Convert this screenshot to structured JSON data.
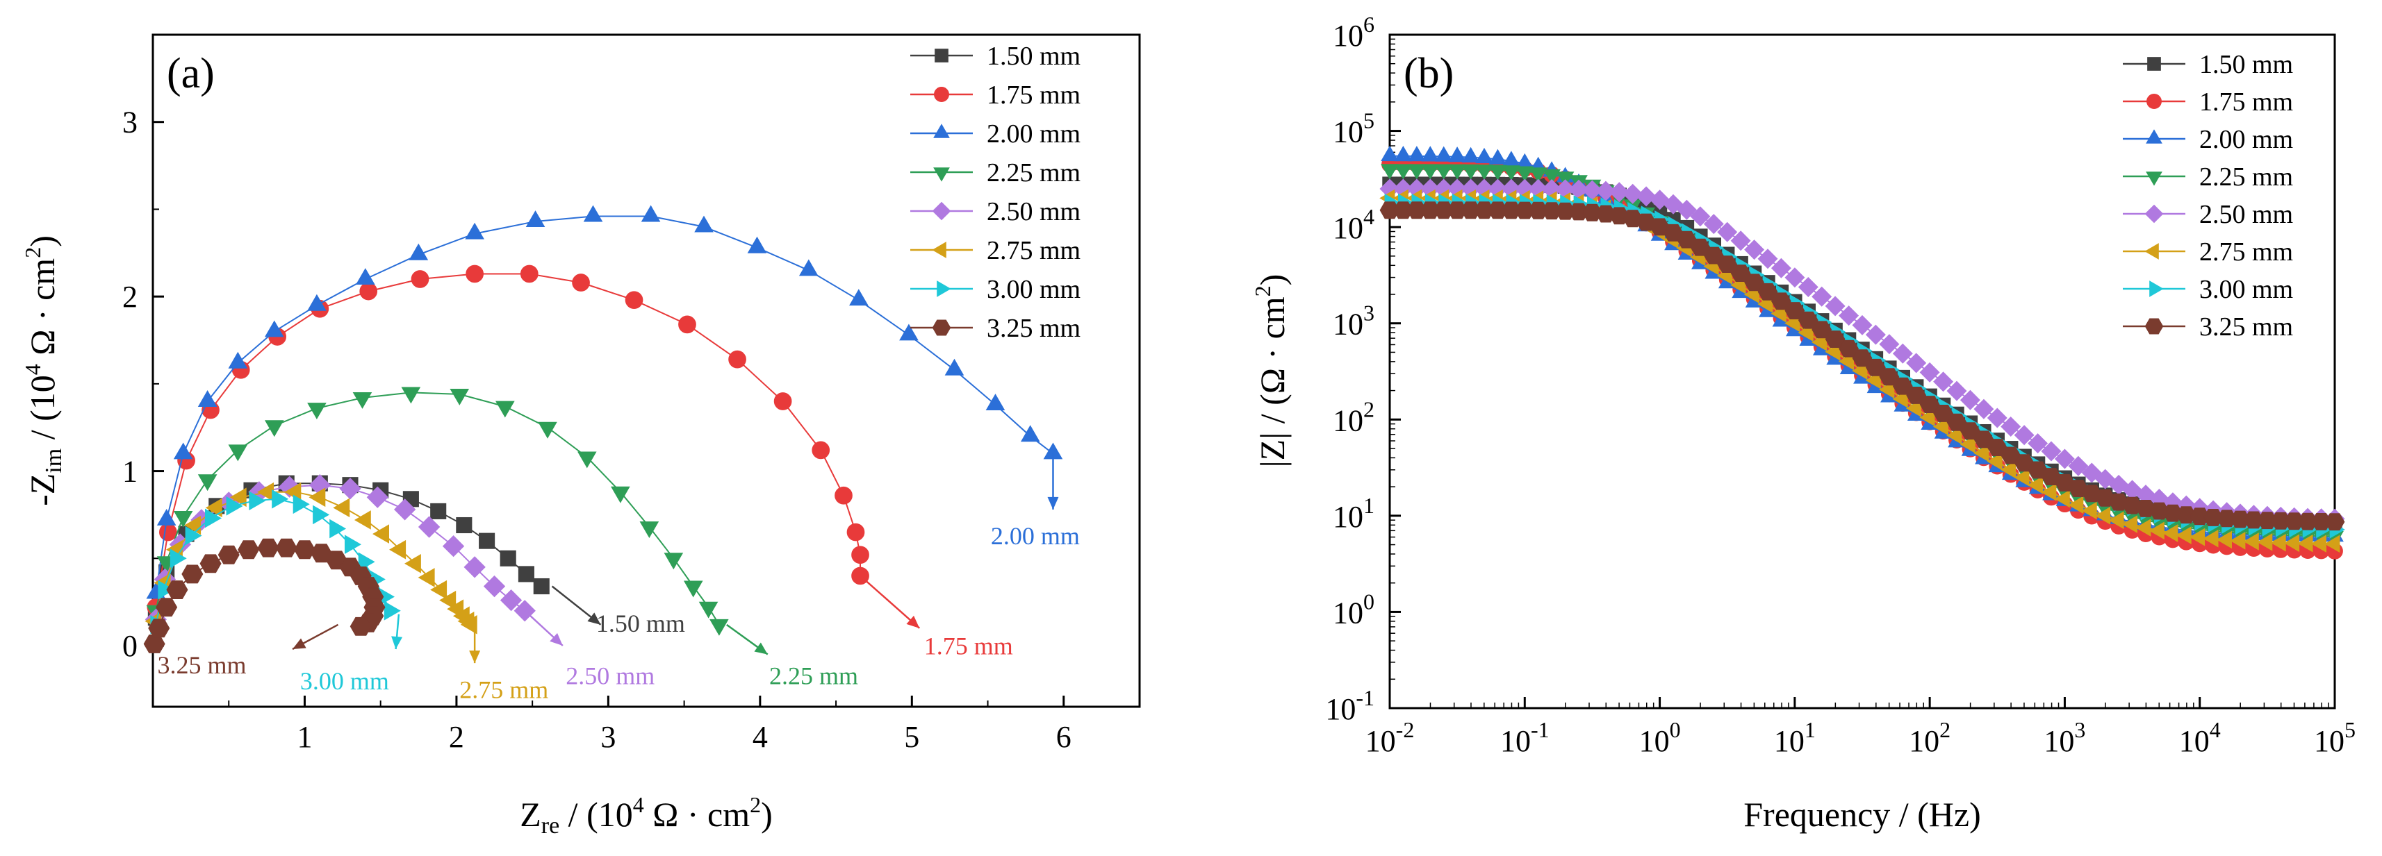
{
  "chart_data": [
    {
      "type": "scatter",
      "panel_label": "(a)",
      "title": "",
      "xlabel": {
        "base": "Z",
        "sub": "re",
        "unit_pre": " / (10",
        "sup": "4",
        "unit_post": " Ω · cm",
        "sup2": "2",
        "close": ")"
      },
      "ylabel": {
        "base": "-Z",
        "sub": "im",
        "unit_pre": " / (10",
        "sup": "4",
        "unit_post": " Ω · cm",
        "sup2": "2",
        "close": ")"
      },
      "xlim": [
        0,
        6.5
      ],
      "ylim": [
        -0.35,
        3.5
      ],
      "xticks": [
        1,
        2,
        3,
        4,
        5,
        6
      ],
      "xtick_labels": [
        "1",
        "2",
        "3",
        "4",
        "5",
        "6"
      ],
      "yticks": [
        0,
        1,
        2,
        3
      ],
      "ytick_labels": [
        "0",
        "1",
        "2",
        "3"
      ],
      "legend_position": "top-right",
      "series": [
        {
          "name": "1.50 mm",
          "color": "#404040",
          "marker": "square",
          "x": [
            0.02,
            0.09,
            0.22,
            0.42,
            0.65,
            0.88,
            1.1,
            1.3,
            1.5,
            1.7,
            1.88,
            2.05,
            2.2,
            2.34,
            2.46,
            2.56
          ],
          "y": [
            0.16,
            0.42,
            0.64,
            0.8,
            0.89,
            0.93,
            0.93,
            0.92,
            0.89,
            0.84,
            0.77,
            0.69,
            0.6,
            0.5,
            0.41,
            0.34
          ],
          "annotation": {
            "text": "1.50 mm",
            "arrow_from": [
              2.63,
              0.34
            ],
            "arrow_to": [
              2.95,
              0.12
            ],
            "text_at": [
              2.92,
              0.08
            ]
          }
        },
        {
          "name": "1.75 mm",
          "color": "#e83a3a",
          "marker": "circle",
          "x": [
            0.02,
            0.1,
            0.22,
            0.38,
            0.58,
            0.82,
            1.1,
            1.42,
            1.76,
            2.12,
            2.48,
            2.82,
            3.17,
            3.52,
            3.85,
            4.15,
            4.4,
            4.55,
            4.63,
            4.66,
            4.66
          ],
          "y": [
            0.22,
            0.65,
            1.06,
            1.35,
            1.58,
            1.77,
            1.93,
            2.03,
            2.1,
            2.13,
            2.13,
            2.08,
            1.98,
            1.84,
            1.64,
            1.4,
            1.12,
            0.86,
            0.65,
            0.52,
            0.4
          ],
          "annotation": {
            "text": "1.75 mm",
            "arrow_from": [
              4.66,
              0.4
            ],
            "arrow_to": [
              5.05,
              0.1
            ],
            "text_at": [
              5.08,
              -0.05
            ]
          }
        },
        {
          "name": "2.00 mm",
          "color": "#2b6fd8",
          "marker": "triangle-up",
          "x": [
            0.02,
            0.09,
            0.2,
            0.36,
            0.56,
            0.8,
            1.08,
            1.4,
            1.75,
            2.12,
            2.52,
            2.9,
            3.28,
            3.63,
            3.98,
            4.32,
            4.65,
            4.98,
            5.28,
            5.55,
            5.78,
            5.93
          ],
          "y": [
            0.3,
            0.72,
            1.1,
            1.4,
            1.62,
            1.8,
            1.95,
            2.1,
            2.24,
            2.36,
            2.43,
            2.46,
            2.46,
            2.4,
            2.28,
            2.15,
            1.98,
            1.78,
            1.58,
            1.38,
            1.2,
            1.1
          ],
          "annotation": {
            "text": "2.00 mm",
            "arrow_from": [
              5.93,
              1.1
            ],
            "arrow_to": [
              5.93,
              0.78
            ],
            "text_at": [
              5.52,
              0.58
            ]
          }
        },
        {
          "name": "2.25 mm",
          "color": "#2e9e56",
          "marker": "triangle-down",
          "x": [
            0.02,
            0.09,
            0.2,
            0.36,
            0.56,
            0.8,
            1.08,
            1.38,
            1.7,
            2.02,
            2.32,
            2.6,
            2.86,
            3.08,
            3.27,
            3.43,
            3.56,
            3.66,
            3.73
          ],
          "y": [
            0.2,
            0.48,
            0.74,
            0.95,
            1.12,
            1.26,
            1.36,
            1.42,
            1.45,
            1.44,
            1.37,
            1.25,
            1.08,
            0.88,
            0.68,
            0.5,
            0.34,
            0.22,
            0.12
          ],
          "annotation": {
            "text": "2.25 mm",
            "arrow_from": [
              3.78,
              0.12
            ],
            "arrow_to": [
              4.05,
              -0.05
            ],
            "text_at": [
              4.06,
              -0.22
            ]
          }
        },
        {
          "name": "2.50 mm",
          "color": "#b079e0",
          "marker": "diamond",
          "x": [
            0.02,
            0.08,
            0.18,
            0.32,
            0.5,
            0.7,
            0.9,
            1.1,
            1.3,
            1.48,
            1.66,
            1.82,
            1.98,
            2.12,
            2.25,
            2.36,
            2.45
          ],
          "y": [
            0.15,
            0.38,
            0.58,
            0.72,
            0.82,
            0.88,
            0.91,
            0.92,
            0.9,
            0.85,
            0.78,
            0.68,
            0.57,
            0.45,
            0.34,
            0.26,
            0.2
          ],
          "annotation": {
            "text": "2.50 mm",
            "arrow_from": [
              2.45,
              0.2
            ],
            "arrow_to": [
              2.7,
              0.0
            ],
            "text_at": [
              2.72,
              -0.22
            ]
          }
        },
        {
          "name": "2.75 mm",
          "color": "#d4a017",
          "marker": "triangle-left",
          "x": [
            0.02,
            0.08,
            0.16,
            0.28,
            0.42,
            0.58,
            0.76,
            0.94,
            1.1,
            1.26,
            1.4,
            1.52,
            1.63,
            1.73,
            1.82,
            1.9,
            1.96,
            2.01,
            2.05,
            2.08,
            2.1
          ],
          "y": [
            0.14,
            0.36,
            0.55,
            0.69,
            0.79,
            0.85,
            0.88,
            0.88,
            0.85,
            0.79,
            0.72,
            0.64,
            0.55,
            0.47,
            0.39,
            0.32,
            0.26,
            0.21,
            0.17,
            0.14,
            0.12
          ],
          "annotation": {
            "text": "2.75 mm",
            "arrow_from": [
              2.12,
              0.1
            ],
            "arrow_to": [
              2.12,
              -0.1
            ],
            "text_at": [
              2.02,
              -0.3
            ]
          }
        },
        {
          "name": "3.00 mm",
          "color": "#1fc8d8",
          "marker": "triangle-right",
          "x": [
            0.02,
            0.07,
            0.15,
            0.25,
            0.38,
            0.52,
            0.67,
            0.82,
            0.96,
            1.09,
            1.2,
            1.3,
            1.39,
            1.46,
            1.52,
            1.56
          ],
          "y": [
            0.12,
            0.32,
            0.5,
            0.63,
            0.73,
            0.8,
            0.83,
            0.84,
            0.81,
            0.75,
            0.67,
            0.58,
            0.48,
            0.38,
            0.28,
            0.2
          ],
          "annotation": {
            "text": "3.00 mm",
            "arrow_from": [
              1.62,
              0.18
            ],
            "arrow_to": [
              1.6,
              -0.02
            ],
            "text_at": [
              0.97,
              -0.25
            ]
          }
        },
        {
          "name": "3.25 mm",
          "color": "#7a3b2e",
          "marker": "hexagon",
          "x": [
            0.01,
            0.04,
            0.09,
            0.16,
            0.26,
            0.38,
            0.5,
            0.63,
            0.76,
            0.88,
            1.0,
            1.11,
            1.21,
            1.3,
            1.37,
            1.42,
            1.45,
            1.46,
            1.45,
            1.42,
            1.37
          ],
          "y": [
            0.01,
            0.1,
            0.22,
            0.32,
            0.41,
            0.47,
            0.52,
            0.55,
            0.56,
            0.56,
            0.55,
            0.53,
            0.49,
            0.45,
            0.4,
            0.34,
            0.28,
            0.22,
            0.17,
            0.13,
            0.11
          ],
          "annotation": {
            "text": "3.25 mm",
            "arrow_from": [
              1.22,
              0.12
            ],
            "arrow_to": [
              0.92,
              -0.02
            ],
            "text_at": [
              0.03,
              -0.16
            ]
          }
        }
      ]
    },
    {
      "type": "scatter",
      "panel_label": "(b)",
      "title": "",
      "xlabel": {
        "text": "Frequency / (Hz)"
      },
      "ylabel": {
        "pre": "|Z| / (Ω · cm",
        "sup": "2",
        "post": ")"
      },
      "xscale": "log",
      "yscale": "log",
      "xlim_exp": [
        -2,
        5
      ],
      "ylim_exp": [
        -1,
        6
      ],
      "xtick_exps": [
        "-2",
        "-1",
        "0",
        "1",
        "2",
        "3",
        "4",
        "5"
      ],
      "ytick_exps": [
        "-1",
        "0",
        "1",
        "2",
        "3",
        "4",
        "5",
        "6"
      ],
      "tick_base": "10",
      "legend_position": "top-right",
      "frequency_points_per_decade": 10,
      "model": "|Z| = R_s + R_p / sqrt(1 + (f / f_c)^2)",
      "series": [
        {
          "name": "1.50 mm",
          "color": "#404040",
          "marker": "square",
          "R_s": 8,
          "R_p": 28000,
          "f_c": 0.6
        },
        {
          "name": "1.75 mm",
          "color": "#e83a3a",
          "marker": "circle",
          "R_s": 4.2,
          "R_p": 45000,
          "f_c": 0.2
        },
        {
          "name": "2.00 mm",
          "color": "#2b6fd8",
          "marker": "triangle-up",
          "R_s": 6,
          "R_p": 55000,
          "f_c": 0.15
        },
        {
          "name": "2.25 mm",
          "color": "#2e9e56",
          "marker": "triangle-down",
          "R_s": 6,
          "R_p": 40000,
          "f_c": 0.3
        },
        {
          "name": "2.50 mm",
          "color": "#b079e0",
          "marker": "diamond",
          "R_s": 9,
          "R_p": 25000,
          "f_c": 1.2
        },
        {
          "name": "2.75 mm",
          "color": "#d4a017",
          "marker": "triangle-left",
          "R_s": 5,
          "R_p": 20000,
          "f_c": 0.5
        },
        {
          "name": "3.00 mm",
          "color": "#1fc8d8",
          "marker": "triangle-right",
          "R_s": 7,
          "R_p": 18000,
          "f_c": 0.9
        },
        {
          "name": "3.25 mm",
          "color": "#7a3b2e",
          "marker": "hexagon",
          "R_s": 8.5,
          "R_p": 15000,
          "f_c": 0.9
        }
      ]
    }
  ]
}
